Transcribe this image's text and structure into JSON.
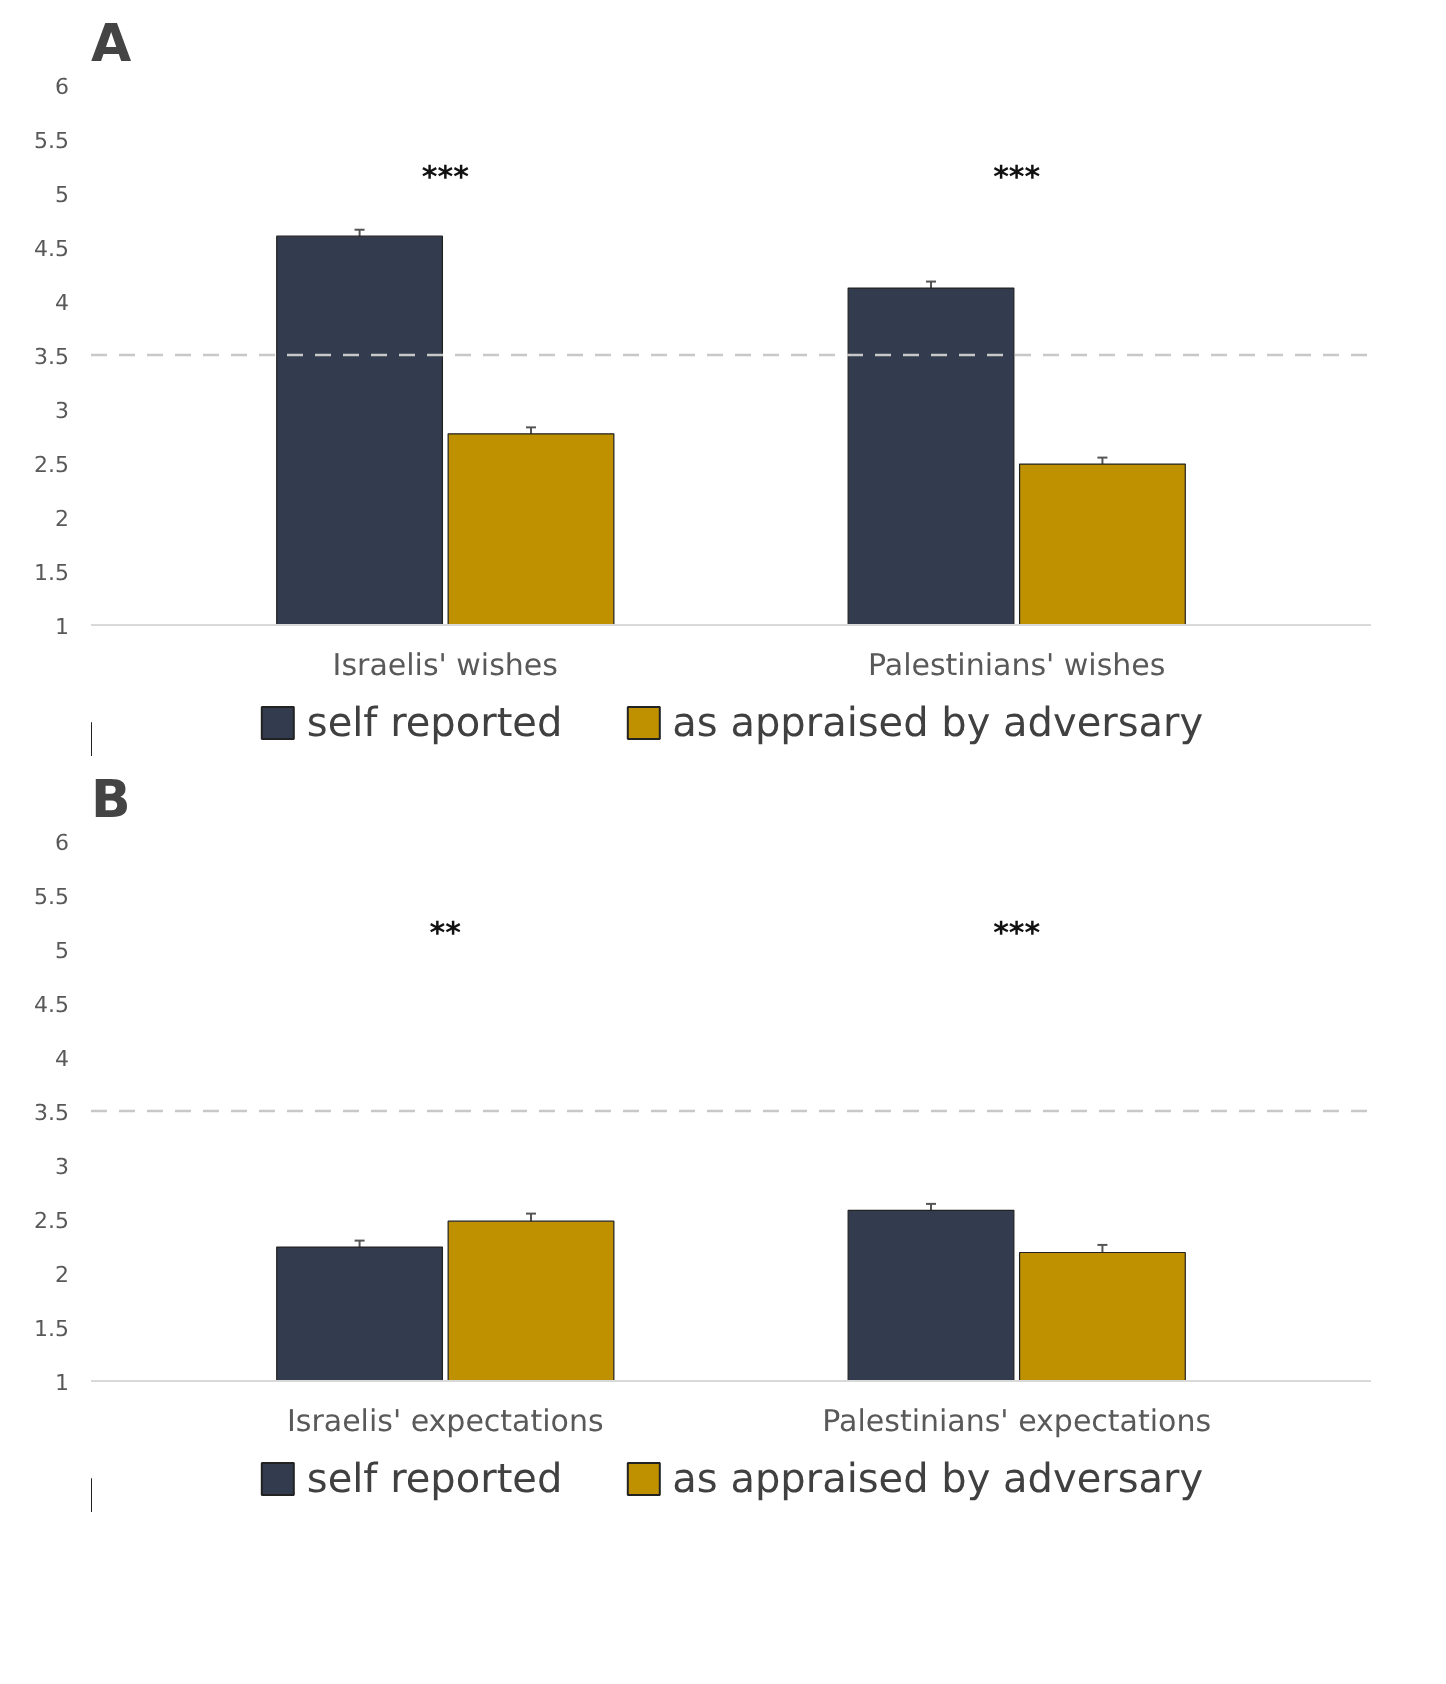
{
  "chart_data": [
    {
      "type": "bar",
      "title": "A",
      "categories": [
        "Israelis' wishes",
        "Palestinians' wishes"
      ],
      "series": [
        {
          "name": "self reported",
          "color": "#323c4e",
          "values": [
            4.6,
            4.12
          ],
          "errors": [
            0.06,
            0.06
          ]
        },
        {
          "name": "as appraised by adversary",
          "color": "#bf9000",
          "values": [
            2.77,
            2.49
          ],
          "errors": [
            0.06,
            0.06
          ]
        }
      ],
      "ylim": [
        1,
        6
      ],
      "yticks": [
        1,
        1.5,
        2,
        2.5,
        3,
        3.5,
        4,
        4.5,
        5,
        5.5,
        6
      ],
      "grid": false,
      "legend": "bottom",
      "ref_lines": [
        {
          "axis": "y",
          "value": 3.5,
          "color": "#c8c8c8",
          "line_style": "dashed"
        }
      ],
      "annotations": [
        "***",
        "***"
      ]
    },
    {
      "type": "bar",
      "title": "B",
      "categories": [
        "Israelis' expectations",
        "Palestinians' expectations"
      ],
      "series": [
        {
          "name": "self reported",
          "color": "#323c4e",
          "values": [
            2.24,
            2.58
          ],
          "errors": [
            0.06,
            0.06
          ]
        },
        {
          "name": "as appraised by adversary",
          "color": "#bf9000",
          "values": [
            2.48,
            2.19
          ],
          "errors": [
            0.07,
            0.07
          ]
        }
      ],
      "ylim": [
        1,
        6
      ],
      "yticks": [
        1,
        1.5,
        2,
        2.5,
        3,
        3.5,
        4,
        4.5,
        5,
        5.5,
        6
      ],
      "grid": false,
      "legend": "bottom",
      "ref_lines": [
        {
          "axis": "y",
          "value": 3.5,
          "color": "#c8c8c8",
          "line_style": "dashed"
        }
      ],
      "annotations": [
        "**",
        "***"
      ]
    }
  ]
}
